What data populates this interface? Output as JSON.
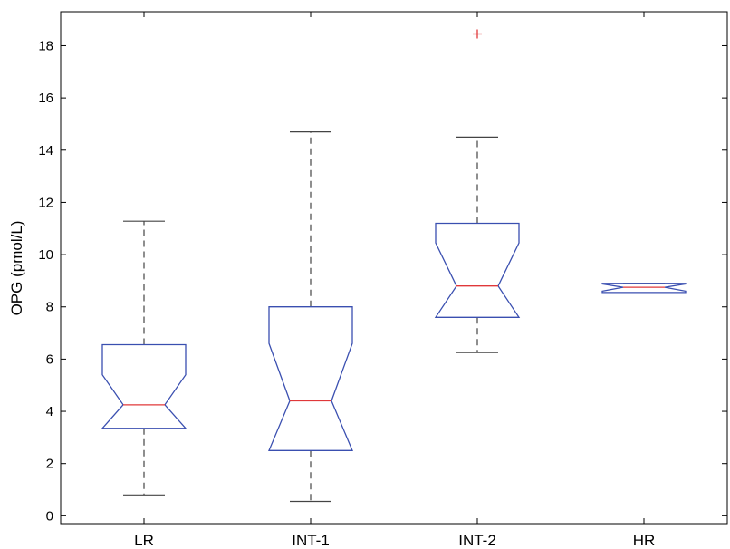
{
  "chart_data": {
    "type": "boxplot",
    "notched": true,
    "title": "",
    "xlabel": "",
    "ylabel": "OPG (pmol/L)",
    "ylim": [
      -0.3,
      19.3
    ],
    "yticks": [
      0,
      2,
      4,
      6,
      8,
      10,
      12,
      14,
      16,
      18
    ],
    "grid": false,
    "colors": {
      "box": "#3a4fb0",
      "median": "#e0383a",
      "whisker": "#444444",
      "outlier": "#e0383a",
      "axis": "#000000"
    },
    "categories": [
      "LR",
      "INT-1",
      "INT-2",
      "HR"
    ],
    "boxes": [
      {
        "category": "LR",
        "whisker_low": 0.8,
        "q1": 3.35,
        "notch_low": 3.35,
        "median": 4.25,
        "notch_high": 5.4,
        "q3": 6.55,
        "whisker_high": 11.28,
        "outliers": []
      },
      {
        "category": "INT-1",
        "whisker_low": 0.55,
        "q1": 2.5,
        "notch_low": 2.5,
        "median": 4.4,
        "notch_high": 6.6,
        "q3": 8.0,
        "whisker_high": 14.7,
        "outliers": []
      },
      {
        "category": "INT-2",
        "whisker_low": 6.25,
        "q1": 7.6,
        "notch_low": 7.6,
        "median": 8.8,
        "notch_high": 10.45,
        "q3": 11.2,
        "whisker_high": 14.5,
        "outliers": [
          18.45
        ]
      },
      {
        "category": "HR",
        "whisker_low": 8.55,
        "q1": 8.55,
        "notch_low": 8.6,
        "median": 8.75,
        "notch_high": 8.88,
        "q3": 8.9,
        "whisker_high": 8.9,
        "outliers": []
      }
    ]
  }
}
